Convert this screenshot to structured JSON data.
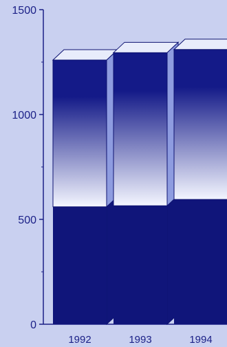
{
  "chart_data": {
    "type": "bar",
    "stacked": true,
    "three_d": true,
    "categories": [
      "1992",
      "1993",
      "1994"
    ],
    "series": [
      {
        "values": [
          560,
          565,
          595
        ]
      },
      {
        "values": [
          700,
          730,
          715
        ]
      }
    ],
    "ylim": [
      0,
      1500
    ],
    "yticks": [
      0,
      500,
      1000,
      1500
    ],
    "grid": false,
    "colors": {
      "background": "#c9d0f0",
      "axis": "#1a1f86",
      "base_fill": "#10157a",
      "top_dark": "#141a88",
      "top_light": "#f4f6ff",
      "top_face": "#e8ecfb",
      "side_face": "#8e9ce0",
      "outline": "#0d1270"
    }
  }
}
